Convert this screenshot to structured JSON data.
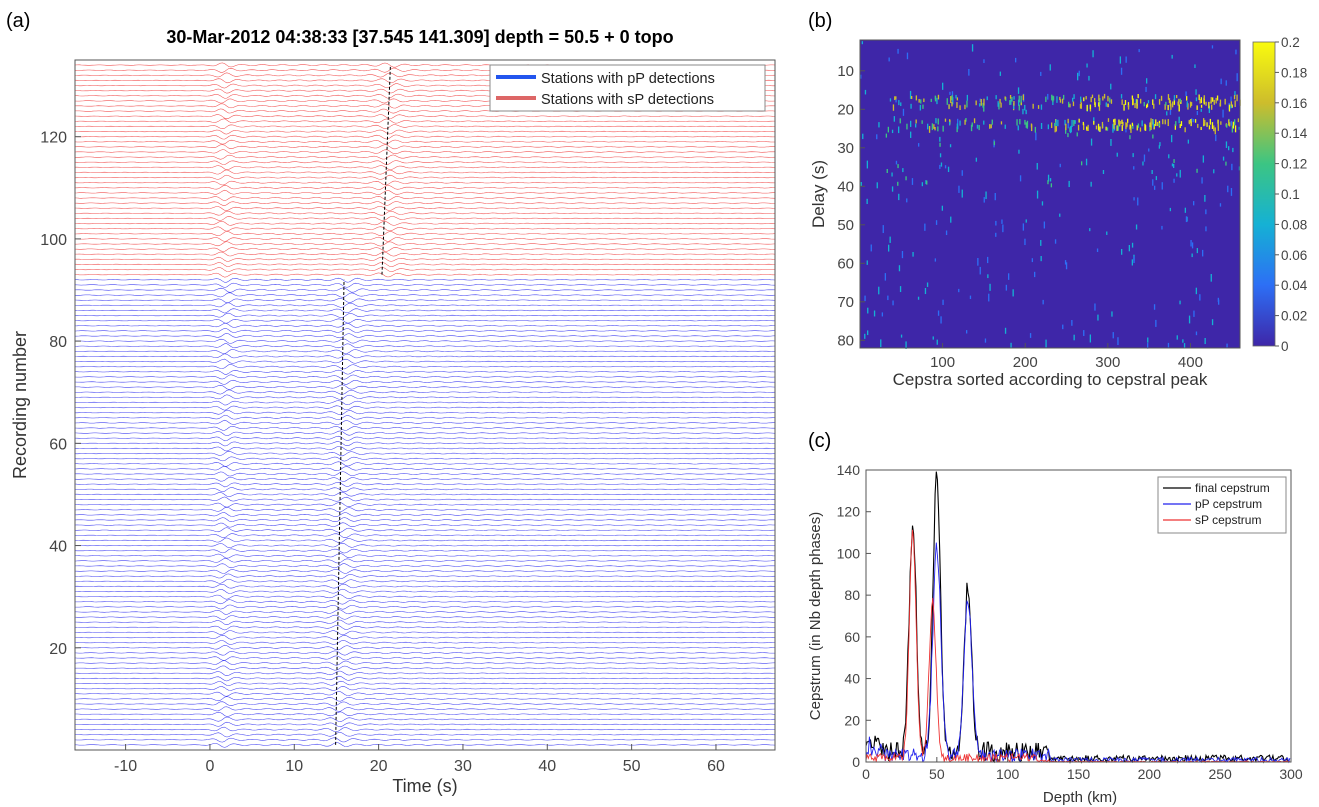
{
  "panels": {
    "a": "(a)",
    "b": "(b)",
    "c": "(c)"
  },
  "chart_data": [
    {
      "panel": "a",
      "type": "line",
      "title": "30-Mar-2012 04:38:33 [37.545 141.309]    depth = 50.5 + 0 topo",
      "xlabel": "Time (s)",
      "ylabel": "Recording number",
      "xlim": [
        -16,
        67
      ],
      "ylim": [
        0,
        135
      ],
      "xticks": [
        -10,
        0,
        10,
        20,
        30,
        40,
        50,
        60
      ],
      "yticks": [
        20,
        40,
        60,
        80,
        100,
        120
      ],
      "legend_position": "top-right",
      "series": [
        {
          "name": "Stations with pP detections",
          "color": "#2222ee",
          "records": [
            1,
            92
          ],
          "phase_arrivals_s": [
            1.5,
            15.3
          ]
        },
        {
          "name": "Stations with sP detections",
          "color": "#ee3333",
          "records": [
            93,
            134
          ],
          "phase_arrivals_s": [
            1.5,
            20.8
          ]
        }
      ]
    },
    {
      "panel": "b",
      "type": "heatmap",
      "xlabel": "Cepstra sorted according to cepstral peak",
      "ylabel": "Delay (s)",
      "xlim": [
        0,
        460
      ],
      "ylim": [
        82,
        2
      ],
      "xticks": [
        100,
        200,
        300,
        400
      ],
      "yticks": [
        10,
        20,
        30,
        40,
        50,
        60,
        70,
        80
      ],
      "colorbar_range": [
        0,
        0.2
      ],
      "colorbar_ticks": [
        "0",
        "0.02",
        "0.04",
        "0.06",
        "0.08",
        "0.1",
        "0.12",
        "0.14",
        "0.16",
        "0.18",
        "0.2"
      ],
      "colormap": [
        "#3e26a8",
        "#2d6ff5",
        "#15b1d4",
        "#3cc583",
        "#cdbd2c",
        "#f9fb0e"
      ],
      "band_delays_s": [
        17.5,
        23.5
      ]
    },
    {
      "panel": "c",
      "type": "line",
      "xlabel": "Depth (km)",
      "ylabel": "Cepstrum (in Nb depth phases)",
      "xlim": [
        0,
        300
      ],
      "ylim": [
        0,
        140
      ],
      "xticks": [
        0,
        50,
        100,
        150,
        200,
        250,
        300
      ],
      "yticks": [
        0,
        20,
        40,
        60,
        80,
        100,
        120,
        140
      ],
      "legend_position": "top-right",
      "series": [
        {
          "name": "final cepstrum",
          "color": "#000000",
          "peaks": [
            [
              33,
              108
            ],
            [
              50,
              134
            ],
            [
              72,
              80
            ]
          ]
        },
        {
          "name": "pP cepstrum",
          "color": "#2222ee",
          "peaks": [
            [
              50,
              100
            ],
            [
              72,
              74
            ]
          ]
        },
        {
          "name": "sP cepstrum",
          "color": "#ee3333",
          "peaks": [
            [
              33,
              108
            ],
            [
              47,
              75
            ]
          ]
        }
      ]
    }
  ]
}
